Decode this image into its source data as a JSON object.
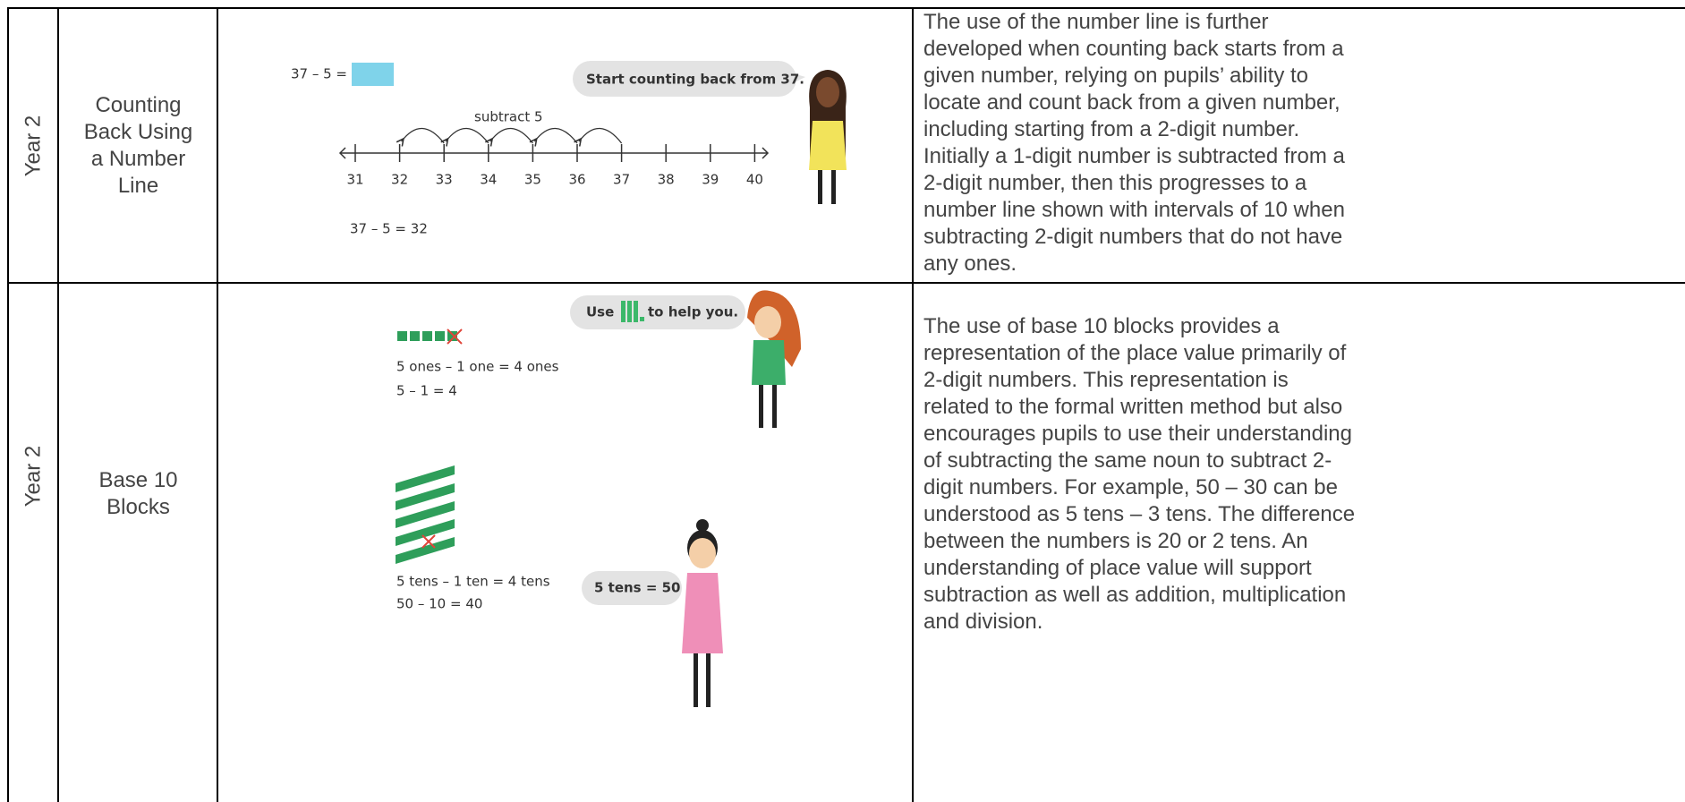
{
  "table": {
    "rows": [
      {
        "year": "Year 2",
        "topic": "Counting Back Using a Number Line",
        "illustration": {
          "equation": "37 – 5 =",
          "speech": "Start counting back from 37.",
          "arc_label": "subtract 5",
          "number_line": [
            31,
            32,
            33,
            34,
            35,
            36,
            37,
            38,
            39,
            40
          ],
          "answer": "37 – 5 = 32"
        },
        "description": [
          "The use of the number line is further",
          "developed when counting back starts from a",
          "given number, relying on pupils’ ability to",
          "locate and count back from a given number,",
          "including starting from a 2-digit number.",
          "Initially a 1-digit number is subtracted from a",
          "2-digit number, then this progresses to a",
          "number line shown with intervals of 10 when",
          "subtracting 2-digit numbers that do not have",
          "any ones."
        ]
      },
      {
        "year": "Year 2",
        "topic": "Base 10 Blocks",
        "illustration": {
          "speech_start": "Use",
          "speech_end": "to help you.",
          "ones_statement": "5 ones – 1 one = 4 ones",
          "ones_equation": "5 – 1 = 4",
          "tens_statement": "5 tens – 1 ten = 4 tens",
          "tens_equation": "50 – 10 = 40",
          "speech_tens": "5 tens = 50"
        },
        "description": [
          "The use of base 10 blocks provides a",
          "representation of the place value primarily of",
          "2-digit numbers. This representation is",
          "related to the formal written method but also",
          "encourages pupils to use their understanding",
          "of subtracting the same noun to subtract 2-",
          "digit numbers. For example, 50 – 30 can be",
          "understood as 5 tens – 3 tens. The difference",
          "between the numbers is 20 or 2 tens. An",
          "understanding of place value will support",
          "subtraction as well as addition, multiplication",
          "and division."
        ]
      }
    ]
  }
}
